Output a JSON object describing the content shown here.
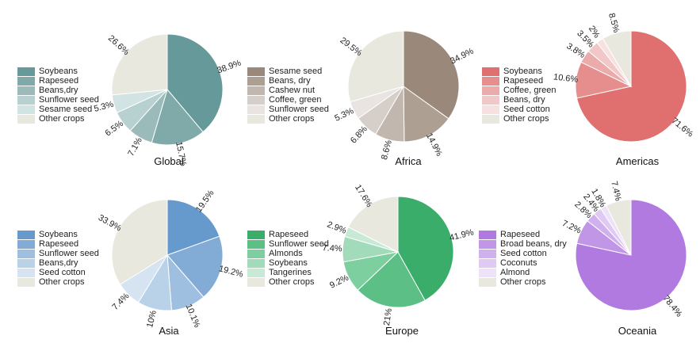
{
  "chart_data": [
    {
      "type": "pie",
      "title": "Global",
      "categories": [
        "Soybeans",
        "Rapeseed",
        "Beans,dry",
        "Sunflower seed",
        "Sesame seed",
        "Other crops"
      ],
      "values": [
        38.9,
        15.7,
        7.1,
        6.5,
        5.3,
        26.6
      ],
      "labels": [
        "38.9%",
        "15.7%",
        "7.1%",
        "6.5%",
        "5.3%",
        "26.6%"
      ],
      "colors": [
        "#65999a",
        "#80aaa9",
        "#9bbbbb",
        "#b7d0d0",
        "#d2e3e3",
        "#e8e8df"
      ],
      "legend": "left"
    },
    {
      "type": "pie",
      "title": "Africa",
      "categories": [
        "Sesame seed",
        "Beans, dry",
        "Cashew nut",
        "Coffee, green",
        "Sunflower seed",
        "Other crops"
      ],
      "values": [
        34.9,
        14.9,
        8.6,
        6.8,
        5.3,
        29.5
      ],
      "labels": [
        "34.9%",
        "14.9%",
        "8.6%",
        "6.8%",
        "5.3%",
        "29.5%"
      ],
      "colors": [
        "#9a887a",
        "#ae9f93",
        "#c2b7ae",
        "#d6cec8",
        "#e9e4e1",
        "#e8e8df"
      ],
      "legend": "left"
    },
    {
      "type": "pie",
      "title": "Americas",
      "categories": [
        "Soybeans",
        "Rapeseed",
        "Coffee, green",
        "Beans, dry",
        "Seed cotton",
        "Other crops"
      ],
      "values": [
        71.6,
        10.6,
        3.8,
        3.5,
        2.0,
        8.5
      ],
      "labels": [
        "71.6%",
        "10.6%",
        "3.8%",
        "3.5%",
        "2%",
        "8.5%"
      ],
      "colors": [
        "#e07070",
        "#e68e8e",
        "#ecabab",
        "#f2c7c7",
        "#f7e0e0",
        "#e8e8df"
      ],
      "legend": "left"
    },
    {
      "type": "pie",
      "title": "Asia",
      "categories": [
        "Soybeans",
        "Rapeseed",
        "Sunflower seed",
        "Beans,dry",
        "Seed cotton",
        "Other crops"
      ],
      "values": [
        19.5,
        19.2,
        10.1,
        10.0,
        7.4,
        33.9
      ],
      "labels": [
        "19.5%",
        "19.2%",
        "10.1%",
        "10%",
        "7.4%",
        "33.9%"
      ],
      "colors": [
        "#6699cc",
        "#82acd6",
        "#9ebfdf",
        "#bad2e8",
        "#d6e4f2",
        "#e8e8df"
      ],
      "legend": "left"
    },
    {
      "type": "pie",
      "title": "Europe",
      "categories": [
        "Rapeseed",
        "Sunflower seed",
        "Almonds",
        "Soybeans",
        "Tangerines",
        "Other crops"
      ],
      "values": [
        41.9,
        21.0,
        9.2,
        7.4,
        2.9,
        17.6
      ],
      "labels": [
        "41.9%",
        "21%",
        "9.2%",
        "7.4%",
        "2.9%",
        "17.6%"
      ],
      "colors": [
        "#3aad6a",
        "#5cbf86",
        "#7ecfa0",
        "#a1dbb9",
        "#c7e9d5",
        "#e8e8df"
      ],
      "legend": "left"
    },
    {
      "type": "pie",
      "title": "Oceania",
      "categories": [
        "Rapeseed",
        "Broad beans, dry",
        "Seed cotton",
        "Coconuts",
        "Almond",
        "Other crops"
      ],
      "values": [
        78.4,
        7.2,
        2.8,
        2.4,
        1.8,
        7.4
      ],
      "labels": [
        "78.4%",
        "7.2%",
        "2.8%",
        "2.4%",
        "1.8%",
        "7.4%"
      ],
      "colors": [
        "#b07ae0",
        "#c196e7",
        "#d1b0ee",
        "#e0caf4",
        "#ede2f8",
        "#e8e8df"
      ],
      "legend": "left"
    }
  ]
}
